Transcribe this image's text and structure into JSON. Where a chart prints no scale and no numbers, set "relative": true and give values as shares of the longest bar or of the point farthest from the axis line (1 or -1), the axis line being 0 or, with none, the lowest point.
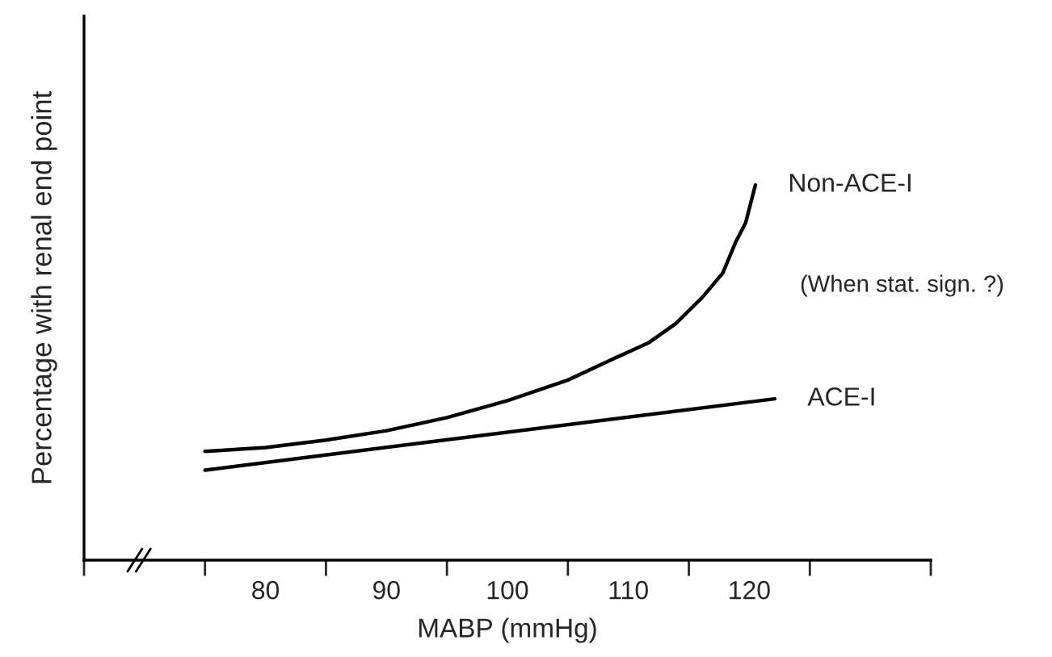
{
  "chart_data": {
    "type": "line",
    "relative": true,
    "xlabel": "MABP (mmHg)",
    "ylabel": "Percentage with renal end point",
    "xlim": [
      65,
      135
    ],
    "xticks": [
      {
        "value": 65,
        "label": null
      },
      {
        "value": 75,
        "label": null
      },
      {
        "value": 80,
        "label": "80"
      },
      {
        "value": 85,
        "label": null
      },
      {
        "value": 90,
        "label": "90"
      },
      {
        "value": 95,
        "label": null
      },
      {
        "value": 100,
        "label": "100"
      },
      {
        "value": 105,
        "label": null
      },
      {
        "value": 110,
        "label": "110"
      },
      {
        "value": 115,
        "label": null
      },
      {
        "value": 120,
        "label": "120"
      },
      {
        "value": 125,
        "label": null
      },
      {
        "value": 135,
        "label": null
      }
    ],
    "series": [
      {
        "name": "Non-ACE-I",
        "color": "#000000",
        "x": [
          75,
          80,
          85,
          90,
          95,
          100,
          105,
          108.3,
          111.7,
          113.9,
          116.1,
          117.8,
          118.9,
          119.7,
          120.5
        ],
        "values": [
          0.29,
          0.3,
          0.32,
          0.345,
          0.38,
          0.425,
          0.48,
          0.53,
          0.58,
          0.63,
          0.7,
          0.765,
          0.85,
          0.9,
          1.0
        ]
      },
      {
        "name": "ACE-I",
        "color": "#000000",
        "x": [
          75,
          122.1
        ],
        "values": [
          0.24,
          0.43
        ]
      }
    ],
    "annotations": [
      "(When stat. sign. ?)"
    ],
    "grid": false,
    "legend": false,
    "marker": "none",
    "line_style": "solid"
  }
}
